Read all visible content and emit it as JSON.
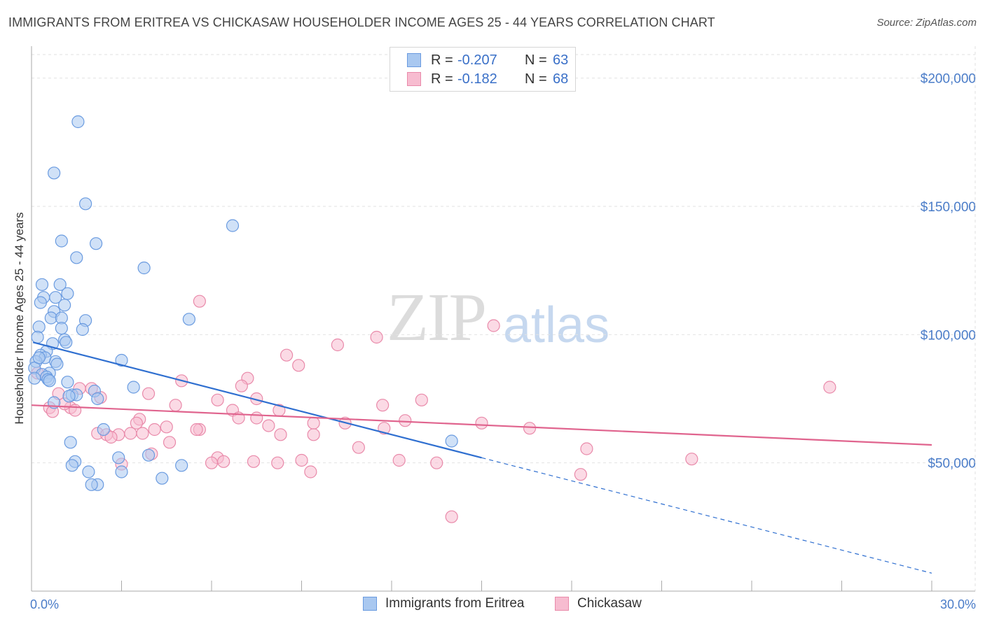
{
  "header": {
    "title": "IMMIGRANTS FROM ERITREA VS CHICKASAW HOUSEHOLDER INCOME AGES 25 - 44 YEARS CORRELATION CHART",
    "source": "Source: ZipAtlas.com"
  },
  "watermark": {
    "zip": "ZIP",
    "atlas": "atlas"
  },
  "legend_top": {
    "rows": [
      {
        "r_label": "R =",
        "r_value": "-0.207",
        "n_label": "N =",
        "n_value": "63"
      },
      {
        "r_label": "R =",
        "r_value": "-0.182",
        "n_label": "N =",
        "n_value": "68"
      }
    ]
  },
  "legend_bottom": {
    "series_a": "Immigrants from Eritrea",
    "series_b": "Chickasaw"
  },
  "colors": {
    "blue_fill": "#a9c8f0",
    "blue_stroke": "#6a9be0",
    "blue_line": "#2f6fd0",
    "pink_fill": "#f7bcd0",
    "pink_stroke": "#e98aaa",
    "pink_line": "#e0648e",
    "grid": "#e2e2e2",
    "axis_text": "#4a7cc8"
  },
  "chart_data": {
    "type": "scatter",
    "title": "IMMIGRANTS FROM ERITREA VS CHICKASAW HOUSEHOLDER INCOME AGES 25 - 44 YEARS CORRELATION CHART",
    "xlabel": "",
    "ylabel": "Householder Income Ages 25 - 44 years",
    "xlim": [
      0,
      30
    ],
    "ylim": [
      0,
      210000
    ],
    "x_tick_labels": [
      "0.0%",
      "30.0%"
    ],
    "y_ticks": [
      50000,
      100000,
      150000,
      200000
    ],
    "y_tick_labels": [
      "$50,000",
      "$100,000",
      "$150,000",
      "$200,000"
    ],
    "legend_position": "top-center",
    "series": [
      {
        "name": "Immigrants from Eritrea",
        "color": "blue",
        "R": -0.207,
        "N": 63,
        "trend": {
          "x0": 0.05,
          "y0": 97000,
          "x1": 15.0,
          "y1": 52000,
          "dash_to_x": 30.0,
          "dash_to_y": 7000
        },
        "points": [
          [
            1.55,
            183000
          ],
          [
            0.75,
            163000
          ],
          [
            1.8,
            151000
          ],
          [
            6.7,
            142500
          ],
          [
            1.0,
            136500
          ],
          [
            2.15,
            135500
          ],
          [
            1.5,
            130000
          ],
          [
            3.75,
            126000
          ],
          [
            0.35,
            119500
          ],
          [
            0.95,
            119500
          ],
          [
            1.2,
            116000
          ],
          [
            0.4,
            114500
          ],
          [
            0.8,
            114500
          ],
          [
            0.3,
            112500
          ],
          [
            1.1,
            111500
          ],
          [
            0.75,
            109000
          ],
          [
            0.65,
            106500
          ],
          [
            1.0,
            106500
          ],
          [
            1.8,
            105500
          ],
          [
            5.25,
            106000
          ],
          [
            0.25,
            103000
          ],
          [
            1.0,
            102500
          ],
          [
            1.7,
            102000
          ],
          [
            0.2,
            99000
          ],
          [
            1.1,
            98000
          ],
          [
            1.15,
            97000
          ],
          [
            0.7,
            96500
          ],
          [
            0.5,
            93500
          ],
          [
            0.3,
            92000
          ],
          [
            0.45,
            91000
          ],
          [
            3.0,
            90000
          ],
          [
            0.8,
            89500
          ],
          [
            0.15,
            89500
          ],
          [
            0.85,
            88500
          ],
          [
            0.1,
            87000
          ],
          [
            0.6,
            85000
          ],
          [
            0.35,
            84500
          ],
          [
            0.5,
            83500
          ],
          [
            0.55,
            82500
          ],
          [
            0.1,
            83000
          ],
          [
            0.6,
            82000
          ],
          [
            1.2,
            81500
          ],
          [
            3.4,
            79500
          ],
          [
            2.1,
            78000
          ],
          [
            1.35,
            76500
          ],
          [
            1.5,
            76500
          ],
          [
            1.25,
            76000
          ],
          [
            2.2,
            75000
          ],
          [
            0.75,
            73500
          ],
          [
            2.4,
            63000
          ],
          [
            1.3,
            58000
          ],
          [
            3.9,
            53000
          ],
          [
            2.9,
            52000
          ],
          [
            1.45,
            50500
          ],
          [
            1.35,
            49000
          ],
          [
            5.0,
            49000
          ],
          [
            1.9,
            46500
          ],
          [
            3.0,
            46500
          ],
          [
            4.35,
            44000
          ],
          [
            2.2,
            41500
          ],
          [
            2.0,
            41500
          ],
          [
            14.0,
            58500
          ],
          [
            0.25,
            91000
          ]
        ]
      },
      {
        "name": "Chickasaw",
        "color": "pink",
        "R": -0.182,
        "N": 68,
        "trend": {
          "x0": 0.0,
          "y0": 72500,
          "x1": 30.0,
          "y1": 57000
        },
        "points": [
          [
            5.6,
            113000
          ],
          [
            15.4,
            103500
          ],
          [
            11.5,
            99000
          ],
          [
            10.2,
            96000
          ],
          [
            8.5,
            92000
          ],
          [
            8.9,
            88000
          ],
          [
            0.2,
            85000
          ],
          [
            7.2,
            83000
          ],
          [
            26.6,
            79500
          ],
          [
            5.0,
            82000
          ],
          [
            7.0,
            80000
          ],
          [
            2.0,
            79000
          ],
          [
            1.6,
            79000
          ],
          [
            3.9,
            77000
          ],
          [
            0.9,
            77000
          ],
          [
            2.3,
            75500
          ],
          [
            7.5,
            75000
          ],
          [
            6.2,
            74500
          ],
          [
            13.0,
            74500
          ],
          [
            11.7,
            72500
          ],
          [
            4.8,
            72500
          ],
          [
            1.3,
            71500
          ],
          [
            0.6,
            71500
          ],
          [
            1.45,
            70500
          ],
          [
            6.7,
            70500
          ],
          [
            8.25,
            70500
          ],
          [
            0.7,
            70000
          ],
          [
            7.5,
            67500
          ],
          [
            6.9,
            67500
          ],
          [
            3.6,
            67000
          ],
          [
            12.45,
            66500
          ],
          [
            15.0,
            65500
          ],
          [
            10.45,
            65500
          ],
          [
            9.4,
            65500
          ],
          [
            3.5,
            65500
          ],
          [
            7.9,
            64500
          ],
          [
            16.6,
            63500
          ],
          [
            11.75,
            63500
          ],
          [
            4.5,
            64000
          ],
          [
            4.1,
            63000
          ],
          [
            5.6,
            63000
          ],
          [
            5.5,
            63000
          ],
          [
            8.3,
            61000
          ],
          [
            2.2,
            61500
          ],
          [
            9.4,
            61000
          ],
          [
            3.3,
            61500
          ],
          [
            2.9,
            61000
          ],
          [
            2.5,
            61000
          ],
          [
            3.7,
            61500
          ],
          [
            2.65,
            60000
          ],
          [
            4.6,
            58000
          ],
          [
            10.9,
            56000
          ],
          [
            18.5,
            55500
          ],
          [
            4.0,
            53500
          ],
          [
            6.2,
            52000
          ],
          [
            7.4,
            50500
          ],
          [
            3.0,
            49500
          ],
          [
            9.0,
            51000
          ],
          [
            12.25,
            51000
          ],
          [
            13.5,
            50000
          ],
          [
            6.4,
            50500
          ],
          [
            6.0,
            50000
          ],
          [
            9.3,
            46500
          ],
          [
            18.3,
            45500
          ],
          [
            22.0,
            51500
          ],
          [
            14.0,
            29000
          ],
          [
            8.2,
            50000
          ],
          [
            1.1,
            73000
          ]
        ]
      }
    ]
  }
}
